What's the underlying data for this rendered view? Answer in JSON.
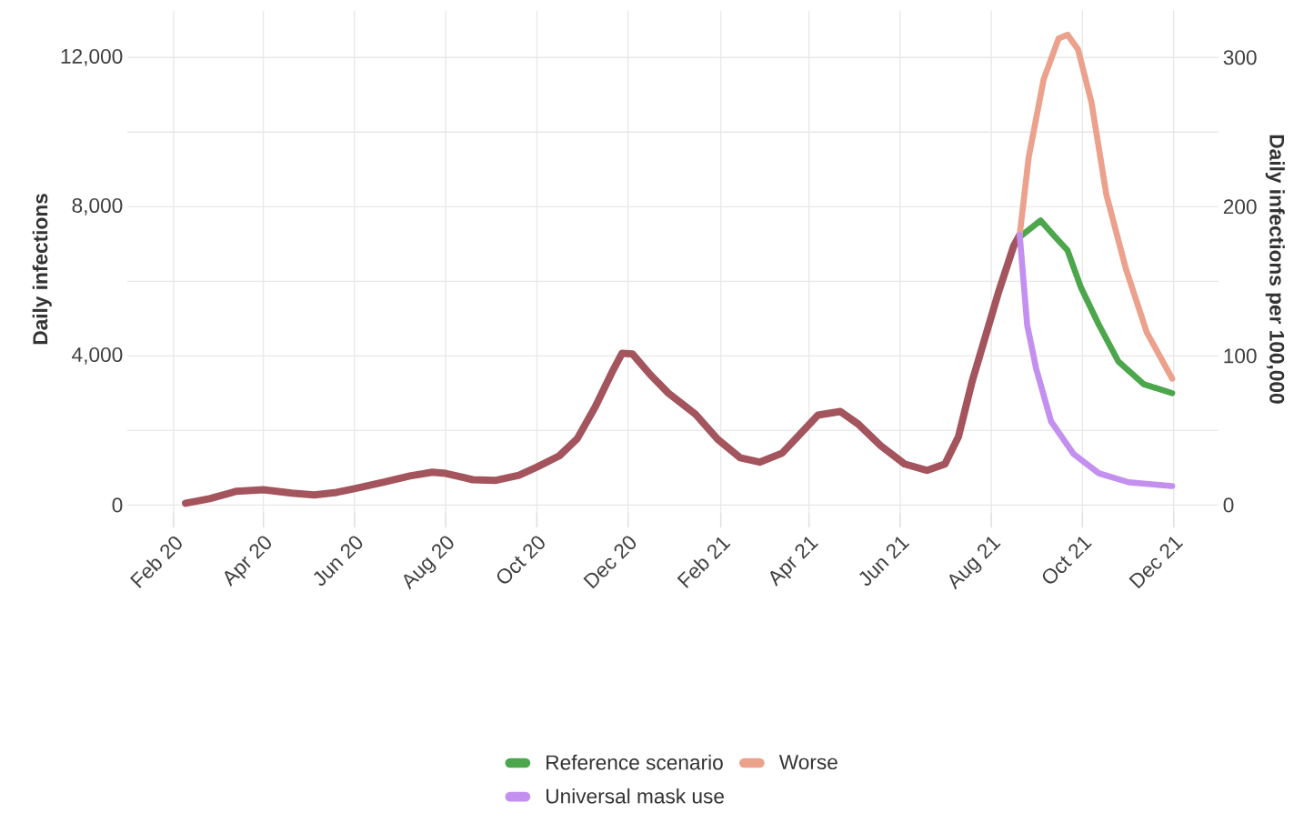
{
  "chart_data": {
    "type": "line",
    "ylabel": "Daily infections",
    "y2label": "Daily infections per 100,000",
    "xlim": [
      "2020-01-01",
      "2021-12-31"
    ],
    "xticks": [
      {
        "value": "2020-02-01",
        "label": "Feb 20"
      },
      {
        "value": "2020-04-01",
        "label": "Apr 20"
      },
      {
        "value": "2020-06-01",
        "label": "Jun 20"
      },
      {
        "value": "2020-08-01",
        "label": "Aug 20"
      },
      {
        "value": "2020-10-01",
        "label": "Oct 20"
      },
      {
        "value": "2020-12-01",
        "label": "Dec 20"
      },
      {
        "value": "2021-02-01",
        "label": "Feb 21"
      },
      {
        "value": "2021-04-01",
        "label": "Apr 21"
      },
      {
        "value": "2021-06-01",
        "label": "Jun 21"
      },
      {
        "value": "2021-08-01",
        "label": "Aug 21"
      },
      {
        "value": "2021-10-01",
        "label": "Oct 21"
      },
      {
        "value": "2021-12-01",
        "label": "Dec 21"
      }
    ],
    "ylim": [
      -600,
      13250
    ],
    "yticks": [
      0,
      {
        "value": 4000,
        "label": "4,000"
      },
      {
        "value": 8000,
        "label": "8,000"
      },
      {
        "value": 12000,
        "label": "12,000"
      }
    ],
    "y2lim": [
      -15,
      331.25
    ],
    "y2ticks": [
      0,
      100,
      200,
      300
    ],
    "grid": true,
    "legend": "bottom",
    "line_style": "solid",
    "marker": "none",
    "series": [
      {
        "color": "#a3545c",
        "x": [
          "2020-02-09",
          "2020-02-25",
          "2020-03-14",
          "2020-04-01",
          "2020-04-20",
          "2020-05-05",
          "2020-05-20",
          "2020-06-01",
          "2020-06-20",
          "2020-07-08",
          "2020-07-23",
          "2020-08-01",
          "2020-08-19",
          "2020-09-03",
          "2020-09-19",
          "2020-10-01",
          "2020-10-16",
          "2020-10-28",
          "2020-11-09",
          "2020-11-20",
          "2020-11-27",
          "2020-12-04",
          "2020-12-16",
          "2020-12-28",
          "2021-01-15",
          "2021-01-30",
          "2021-02-14",
          "2021-02-27",
          "2021-03-14",
          "2021-03-26",
          "2021-04-07",
          "2021-04-22",
          "2021-05-04",
          "2021-05-19",
          "2021-06-04",
          "2021-06-19",
          "2021-07-01",
          "2021-07-10",
          "2021-07-19",
          "2021-07-28",
          "2021-08-06",
          "2021-08-16",
          "2021-08-20"
        ],
        "values": [
          50,
          170,
          370,
          410,
          320,
          270,
          340,
          440,
          610,
          780,
          880,
          850,
          680,
          660,
          800,
          1020,
          1320,
          1780,
          2630,
          3540,
          4070,
          4050,
          3490,
          3000,
          2440,
          1760,
          1270,
          1150,
          1390,
          1900,
          2410,
          2510,
          2170,
          1590,
          1100,
          930,
          1100,
          1830,
          3290,
          4510,
          5730,
          6950,
          7240
        ]
      },
      {
        "name": "Reference scenario",
        "color": "#4ca64c",
        "x": [
          "2021-08-20",
          "2021-08-21",
          "2021-09-03",
          "2021-09-12",
          "2021-09-21",
          "2021-09-30",
          "2021-10-12",
          "2021-10-25",
          "2021-11-11",
          "2021-11-30"
        ],
        "values": [
          7240,
          7220,
          7630,
          7220,
          6830,
          5830,
          4830,
          3850,
          3240,
          3000
        ]
      },
      {
        "name": "Worse",
        "color": "#eba18b",
        "x": [
          "2021-08-20",
          "2021-08-26",
          "2021-09-05",
          "2021-09-15",
          "2021-09-21",
          "2021-09-28",
          "2021-10-07",
          "2021-10-17",
          "2021-10-30",
          "2021-11-13",
          "2021-11-30"
        ],
        "values": [
          7240,
          9320,
          11410,
          12510,
          12610,
          12220,
          10800,
          8320,
          6340,
          4630,
          3390
        ]
      },
      {
        "name": "Universal mask use",
        "color": "#c490f0",
        "x": [
          "2021-08-20",
          "2021-08-25",
          "2021-08-31",
          "2021-09-10",
          "2021-09-25",
          "2021-10-12",
          "2021-11-01",
          "2021-11-30"
        ],
        "values": [
          7240,
          4830,
          3660,
          2240,
          1370,
          850,
          610,
          510
        ]
      }
    ]
  }
}
